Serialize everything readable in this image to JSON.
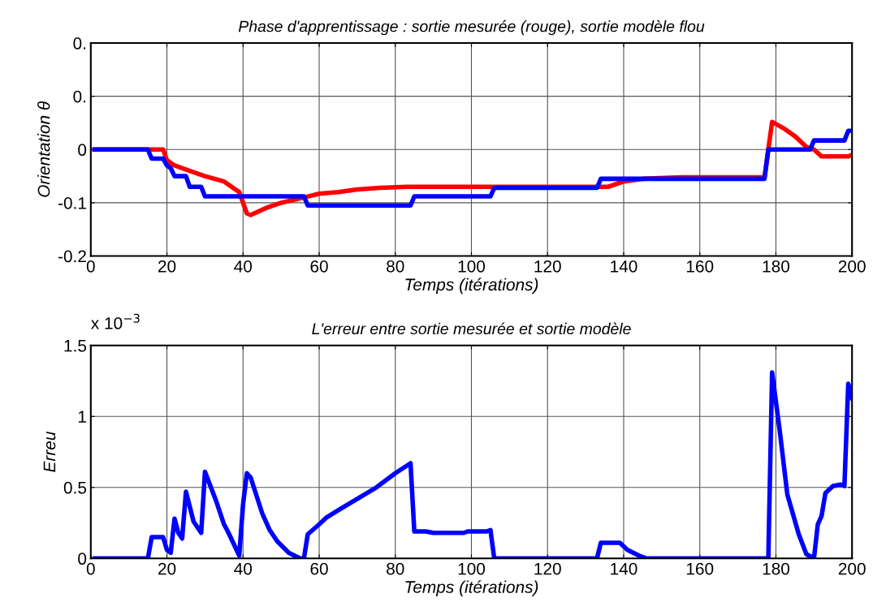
{
  "chart_data": [
    {
      "type": "line",
      "title": "Phase d'apprentissage : sortie mesurée (rouge), sortie modèle flou",
      "xlabel": "Temps (itérations)",
      "ylabel": "Orientation θ",
      "xlim": [
        0,
        200
      ],
      "xticks": [
        0,
        20,
        40,
        60,
        80,
        100,
        120,
        140,
        160,
        180,
        200
      ],
      "ylim": [
        -0.2,
        0.2
      ],
      "yticks": [
        {
          "value": -0.2,
          "label": "-0.2"
        },
        {
          "value": -0.1,
          "label": "-0.1"
        },
        0,
        {
          "value": 0.1,
          "label": "0."
        },
        {
          "value": 0.2,
          "label": "0."
        }
      ],
      "grid": true,
      "line_style": "solid",
      "series": [
        {
          "color": "#ff0000",
          "x": [
            1,
            19,
            20,
            22,
            26,
            30,
            35,
            38,
            39,
            41,
            42,
            46,
            50,
            56,
            60,
            65,
            70,
            76,
            83,
            136,
            140,
            145,
            155,
            177,
            179,
            182,
            185,
            188,
            190,
            192,
            199,
            200
          ],
          "values": [
            0,
            0,
            -0.02,
            -0.03,
            -0.04,
            -0.05,
            -0.06,
            -0.075,
            -0.08,
            -0.12,
            -0.123,
            -0.11,
            -0.1,
            -0.09,
            -0.083,
            -0.08,
            -0.075,
            -0.072,
            -0.07,
            -0.07,
            -0.06,
            -0.055,
            -0.052,
            -0.052,
            0.052,
            0.04,
            0.025,
            0.005,
            0,
            -0.013,
            -0.013,
            -0.01
          ]
        },
        {
          "color": "#0000ff",
          "x": [
            1,
            15,
            16,
            19,
            20,
            21,
            22,
            25,
            26,
            29,
            30,
            56,
            57,
            84,
            85,
            105,
            106,
            133,
            134,
            177,
            178,
            189,
            190,
            198,
            199,
            200
          ],
          "values": [
            0,
            0,
            -0.017,
            -0.017,
            -0.03,
            -0.035,
            -0.05,
            -0.05,
            -0.07,
            -0.07,
            -0.088,
            -0.088,
            -0.105,
            -0.105,
            -0.088,
            -0.088,
            -0.072,
            -0.072,
            -0.055,
            -0.055,
            0,
            0,
            0.017,
            0.017,
            0.035,
            0.035
          ]
        }
      ]
    },
    {
      "type": "line",
      "title": "L'erreur entre sortie mesurée et sortie modèle",
      "xlabel": "Temps (itérations)",
      "ylabel": "Erreu",
      "annotations": [
        "x 10$^{−3}$"
      ],
      "xlim": [
        0,
        200
      ],
      "xticks": [
        0,
        20,
        40,
        60,
        80,
        100,
        120,
        140,
        160,
        180,
        200
      ],
      "ylim": [
        0,
        1.5
      ],
      "yticks": [
        0,
        0.5,
        1,
        1.5
      ],
      "grid": true,
      "line_style": "solid",
      "series": [
        {
          "color": "#0000ff",
          "x": [
            1,
            15,
            16,
            19,
            20,
            21,
            22,
            23,
            24,
            25,
            27,
            29,
            30,
            33,
            35,
            36,
            39,
            40,
            41,
            42,
            45,
            47,
            49,
            52,
            55,
            56,
            57,
            60,
            62,
            65,
            70,
            75,
            80,
            84,
            85,
            88,
            90,
            98,
            99,
            104,
            105,
            106,
            133,
            134,
            139,
            141,
            144,
            146,
            178,
            179,
            181,
            183,
            186,
            188,
            190,
            191,
            192,
            193,
            195,
            197,
            198,
            199,
            200
          ],
          "values": [
            0,
            0,
            0.15,
            0.15,
            0.06,
            0.04,
            0.28,
            0.18,
            0.14,
            0.47,
            0.26,
            0.18,
            0.61,
            0.4,
            0.24,
            0.19,
            0.02,
            0.38,
            0.6,
            0.57,
            0.32,
            0.2,
            0.12,
            0.04,
            0,
            0,
            0.17,
            0.24,
            0.29,
            0.34,
            0.42,
            0.5,
            0.6,
            0.67,
            0.19,
            0.19,
            0.18,
            0.18,
            0.19,
            0.19,
            0.2,
            0,
            0,
            0.11,
            0.11,
            0.06,
            0.02,
            0,
            0,
            1.31,
            0.9,
            0.45,
            0.17,
            0.03,
            0,
            0.24,
            0.3,
            0.46,
            0.51,
            0.52,
            0.51,
            1.23,
            1.13
          ]
        }
      ]
    }
  ]
}
